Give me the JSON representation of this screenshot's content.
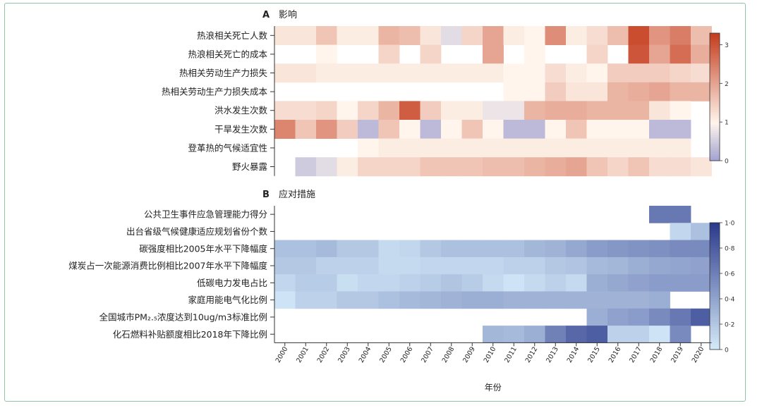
{
  "chart_data": [
    {
      "type": "heatmap",
      "panel": "A",
      "title": "影响",
      "years": [
        "2000",
        "2001",
        "2002",
        "2003",
        "2004",
        "2005",
        "2006",
        "2007",
        "2008",
        "2009",
        "2010",
        "2011",
        "2012",
        "2013",
        "2014",
        "2015",
        "2016",
        "2017",
        "2018",
        "2019",
        "2020"
      ],
      "rows": [
        "热浪相关死亡人数",
        "热浪相关死亡的成本",
        "热相关劳动生产力损失",
        "热相关劳动生产力损失成本",
        "洪水发生次数",
        "干旱发生次数",
        "登革热的气候适宜性",
        "野火暴露"
      ],
      "values": [
        [
          1.2,
          1.2,
          1.6,
          1.1,
          1.1,
          1.8,
          1.7,
          1.2,
          0.7,
          1.4,
          2.0,
          1.1,
          1.0,
          2.3,
          1.1,
          1.3,
          1.7,
          3.1,
          2.2,
          2.5,
          1.7
        ],
        [
          null,
          null,
          1.0,
          null,
          null,
          1.4,
          null,
          1.4,
          null,
          null,
          2.0,
          null,
          1.0,
          null,
          null,
          1.4,
          null,
          3.0,
          2.0,
          2.7,
          1.9
        ],
        [
          1.2,
          1.2,
          1.1,
          1.1,
          1.1,
          1.1,
          1.1,
          1.1,
          1.1,
          1.1,
          1.1,
          1.0,
          1.0,
          1.3,
          1.1,
          1.0,
          1.5,
          1.5,
          1.5,
          1.4,
          1.3
        ],
        [
          null,
          null,
          null,
          null,
          null,
          null,
          null,
          null,
          null,
          null,
          null,
          1.0,
          1.0,
          1.5,
          1.2,
          1.2,
          1.8,
          1.9,
          2.0,
          1.8,
          1.8
        ],
        [
          1.3,
          1.3,
          1.4,
          1.0,
          1.4,
          1.8,
          2.9,
          1.5,
          1.1,
          1.1,
          0.8,
          0.8,
          1.8,
          1.9,
          1.9,
          1.8,
          1.8,
          1.8,
          1.2,
          1.0,
          null
        ],
        [
          2.4,
          1.6,
          2.2,
          1.5,
          0.3,
          1.6,
          1.0,
          0.3,
          1.0,
          1.6,
          1.0,
          0.3,
          0.3,
          1.0,
          1.6,
          1.0,
          1.0,
          1.0,
          0.3,
          0.3,
          null
        ],
        [
          null,
          null,
          null,
          null,
          1.0,
          1.1,
          1.1,
          1.1,
          1.1,
          1.1,
          1.1,
          1.1,
          1.1,
          1.1,
          1.1,
          1.1,
          1.1,
          1.1,
          1.1,
          1.1,
          null
        ],
        [
          null,
          0.5,
          0.7,
          1.1,
          1.4,
          1.4,
          1.4,
          1.6,
          1.6,
          1.6,
          1.7,
          1.7,
          1.8,
          1.9,
          2.0,
          1.6,
          1.4,
          1.6,
          1.3,
          1.3,
          1.2
        ]
      ],
      "colorbar": {
        "min": 0,
        "max": 3.3,
        "ticks": [
          "0",
          "1",
          "2",
          "3"
        ],
        "tick_values": [
          0,
          1,
          2,
          3
        ]
      }
    },
    {
      "type": "heatmap",
      "panel": "B",
      "title": "应对措施",
      "years": [
        "2000",
        "2001",
        "2002",
        "2003",
        "2004",
        "2005",
        "2006",
        "2007",
        "2008",
        "2009",
        "2010",
        "2011",
        "2012",
        "2013",
        "2014",
        "2015",
        "2016",
        "2017",
        "2018",
        "2019",
        "2020"
      ],
      "rows": [
        "公共卫生事件应急管理能力得分",
        "出台省级气候健康适应规划省份个数",
        "碳强度相比2005年水平下降幅度",
        "煤炭占一次能源消费比例相比2007年水平下降幅度",
        "低碳电力发电占比",
        "家庭用能电气化比例",
        "全国城市PM₂.₅浓度达到10ug/m3标准比例",
        "化石燃料补贴额度相比2018年下降比例"
      ],
      "values": [
        [
          null,
          null,
          null,
          null,
          null,
          null,
          null,
          null,
          null,
          null,
          null,
          null,
          null,
          null,
          null,
          null,
          null,
          null,
          0.65,
          0.65,
          null
        ],
        [
          null,
          null,
          null,
          null,
          null,
          null,
          null,
          null,
          null,
          null,
          null,
          null,
          null,
          null,
          null,
          null,
          null,
          null,
          null,
          0.12,
          0.25
        ],
        [
          0.25,
          0.25,
          0.28,
          0.2,
          0.2,
          0.1,
          0.12,
          0.2,
          0.25,
          0.25,
          0.25,
          0.25,
          0.3,
          0.32,
          0.38,
          0.45,
          0.48,
          0.5,
          0.52,
          0.55,
          0.55
        ],
        [
          0.2,
          0.2,
          0.15,
          0.15,
          0.15,
          0.1,
          0.1,
          0.12,
          0.12,
          0.12,
          0.12,
          0.15,
          0.15,
          0.2,
          0.22,
          0.28,
          0.3,
          0.35,
          0.38,
          0.4,
          0.42
        ],
        [
          0.12,
          0.18,
          0.18,
          0.08,
          0.12,
          0.12,
          0.15,
          0.18,
          0.22,
          0.18,
          0.1,
          0.05,
          0.1,
          0.15,
          0.1,
          0.35,
          0.38,
          0.42,
          0.45,
          0.45,
          0.45
        ],
        [
          0.05,
          0.15,
          0.15,
          0.2,
          0.2,
          0.25,
          0.28,
          0.3,
          0.32,
          0.35,
          0.35,
          0.32,
          0.32,
          0.32,
          0.32,
          0.32,
          0.32,
          0.32,
          0.35,
          null,
          null
        ],
        [
          null,
          null,
          null,
          null,
          null,
          null,
          null,
          null,
          null,
          null,
          null,
          null,
          null,
          null,
          null,
          0.35,
          0.42,
          0.45,
          0.55,
          0.65,
          0.8
        ],
        [
          null,
          null,
          null,
          null,
          null,
          null,
          null,
          null,
          null,
          null,
          0.3,
          0.28,
          0.35,
          0.6,
          0.75,
          0.8,
          0.15,
          0.15,
          0.05,
          0.55,
          null
        ]
      ],
      "colorbar": {
        "min": 0,
        "max": 1.0,
        "ticks": [
          "0",
          "0·2",
          "0·4",
          "0·6",
          "0·8",
          "1·0"
        ],
        "tick_values": [
          0,
          0.2,
          0.4,
          0.6,
          0.8,
          1.0
        ]
      }
    }
  ],
  "xlabel": "年份",
  "colors": {
    "a_low": "#9fa0d0",
    "a_mid": "#fff5ec",
    "a_high": "#c53d1e",
    "b_low": "#d6ecfa",
    "b_high": "#2c3a8c",
    "frame": "#8fc4a6"
  }
}
